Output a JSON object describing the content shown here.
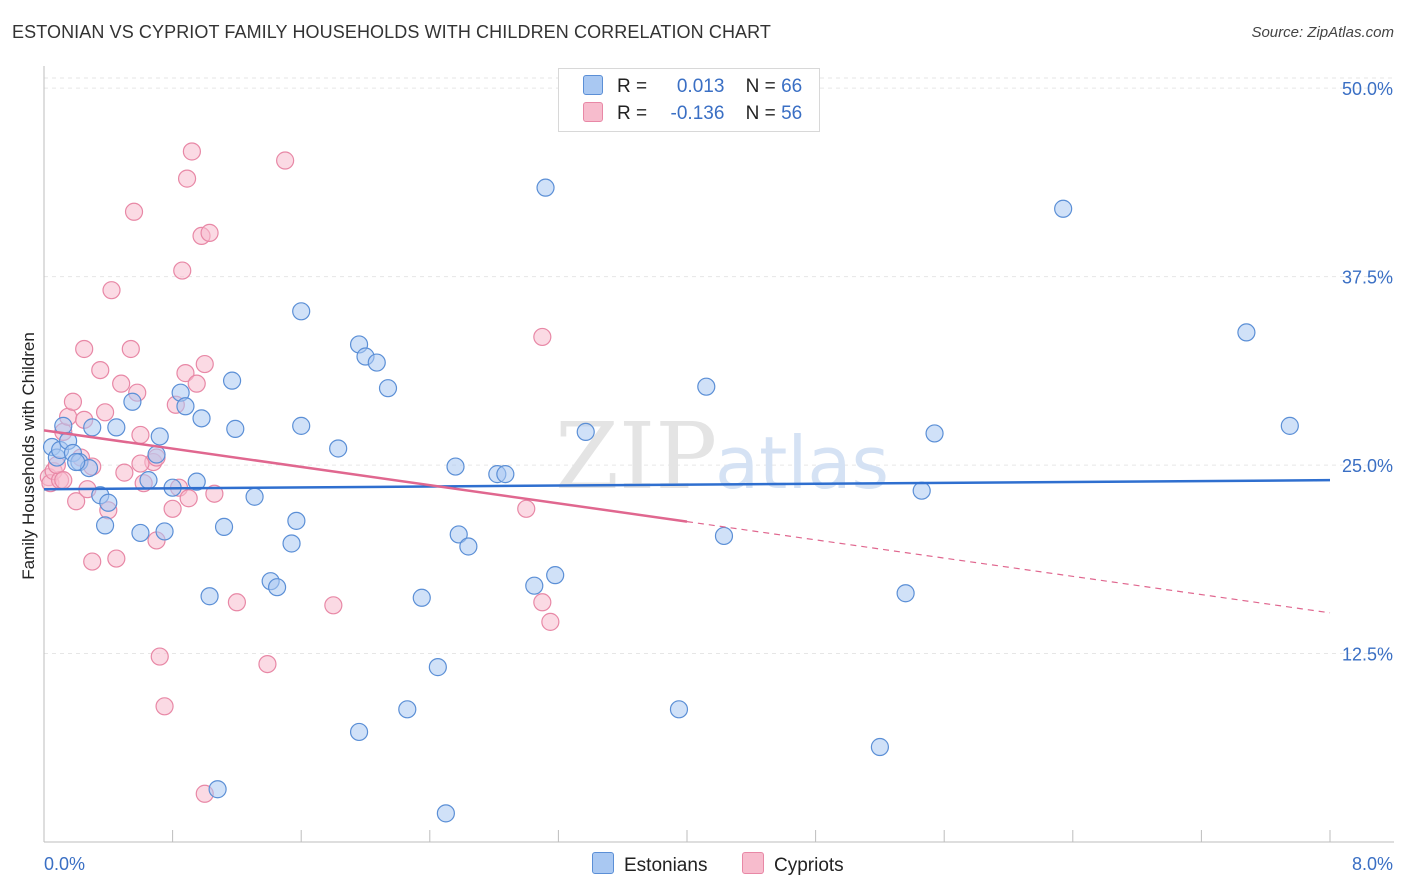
{
  "header": {
    "title": "ESTONIAN VS CYPRIOT FAMILY HOUSEHOLDS WITH CHILDREN CORRELATION CHART",
    "source": "Source: ZipAtlas.com"
  },
  "legend": {
    "rows": [
      {
        "r_label": "R =",
        "r_value": "0.013",
        "n_label": "N =",
        "n_value": "66",
        "color": "#a9c8f2"
      },
      {
        "r_label": "R =",
        "r_value": "-0.136",
        "n_label": "N =",
        "n_value": "56",
        "color": "#f7bccd"
      }
    ],
    "bottom": [
      {
        "label": "Estonians",
        "color": "#a9c8f2"
      },
      {
        "label": "Cypriots",
        "color": "#f7bccd"
      }
    ]
  },
  "watermark": {
    "zip": "ZIP",
    "atlas": "atlas"
  },
  "colors": {
    "estonian_fill": "#a9c8f2",
    "estonian_stroke": "#5b8fd6",
    "estonian_line": "#2f6fcf",
    "cypriot_fill": "#f7bccd",
    "cypriot_stroke": "#e888a6",
    "cypriot_line": "#e0678f",
    "axis_label": "#3a6fc4",
    "grid": "#e6e6e6"
  },
  "chart_data": {
    "type": "scatter",
    "title": "ESTONIAN VS CYPRIOT FAMILY HOUSEHOLDS WITH CHILDREN CORRELATION CHART",
    "xlabel": "",
    "ylabel": "Family Households with Children",
    "xlim": [
      0,
      8
    ],
    "ylim": [
      0,
      52
    ],
    "x_tick_labels": [
      "0.0%",
      "8.0%"
    ],
    "y_ticks": [
      12.5,
      25.0,
      37.5,
      50.0
    ],
    "y_tick_labels": [
      "12.5%",
      "25.0%",
      "37.5%",
      "50.0%"
    ],
    "grid": true,
    "legend_position": "top-center",
    "series": [
      {
        "name": "Estonians",
        "R": 0.013,
        "N": 66,
        "trend": {
          "x": [
            0,
            8
          ],
          "y": [
            23.4,
            24.0
          ],
          "dashed_from": null
        },
        "points": [
          [
            0.05,
            26.2
          ],
          [
            0.08,
            25.5
          ],
          [
            0.1,
            26.0
          ],
          [
            0.12,
            27.6
          ],
          [
            0.15,
            26.6
          ],
          [
            0.18,
            25.8
          ],
          [
            0.22,
            25.2
          ],
          [
            0.28,
            24.8
          ],
          [
            0.3,
            27.5
          ],
          [
            0.35,
            23.0
          ],
          [
            0.38,
            21.0
          ],
          [
            0.4,
            22.5
          ],
          [
            0.45,
            27.5
          ],
          [
            0.55,
            29.2
          ],
          [
            0.6,
            20.5
          ],
          [
            0.65,
            24.0
          ],
          [
            0.7,
            25.7
          ],
          [
            0.72,
            26.9
          ],
          [
            0.75,
            20.6
          ],
          [
            0.8,
            23.5
          ],
          [
            0.85,
            29.8
          ],
          [
            0.88,
            28.9
          ],
          [
            0.95,
            23.9
          ],
          [
            0.98,
            28.1
          ],
          [
            1.03,
            16.3
          ],
          [
            1.12,
            20.9
          ],
          [
            1.17,
            30.6
          ],
          [
            1.19,
            27.4
          ],
          [
            1.31,
            22.9
          ],
          [
            1.41,
            17.3
          ],
          [
            1.45,
            16.9
          ],
          [
            1.54,
            19.8
          ],
          [
            1.57,
            21.3
          ],
          [
            1.6,
            27.6
          ],
          [
            1.6,
            35.2
          ],
          [
            1.83,
            26.1
          ],
          [
            1.96,
            7.3
          ],
          [
            1.96,
            33.0
          ],
          [
            2.0,
            32.2
          ],
          [
            2.07,
            31.8
          ],
          [
            2.14,
            30.1
          ],
          [
            2.26,
            8.8
          ],
          [
            2.35,
            16.2
          ],
          [
            2.45,
            11.6
          ],
          [
            2.5,
            1.9
          ],
          [
            2.56,
            24.9
          ],
          [
            2.58,
            20.4
          ],
          [
            2.64,
            19.6
          ],
          [
            2.82,
            24.4
          ],
          [
            2.87,
            24.4
          ],
          [
            3.05,
            17.0
          ],
          [
            3.12,
            43.4
          ],
          [
            3.18,
            17.7
          ],
          [
            3.37,
            27.2
          ],
          [
            3.95,
            8.8
          ],
          [
            4.12,
            30.2
          ],
          [
            4.23,
            20.3
          ],
          [
            5.2,
            6.3
          ],
          [
            5.36,
            16.5
          ],
          [
            5.46,
            23.3
          ],
          [
            5.54,
            27.1
          ],
          [
            6.34,
            42.0
          ],
          [
            7.48,
            33.8
          ],
          [
            7.75,
            27.6
          ],
          [
            0.2,
            25.2
          ],
          [
            1.08,
            3.5
          ]
        ]
      },
      {
        "name": "Cypriots",
        "R": -0.136,
        "N": 56,
        "trend": {
          "x": [
            0,
            8
          ],
          "y": [
            27.3,
            15.2
          ],
          "dashed_from": 4.0
        },
        "points": [
          [
            0.03,
            24.2
          ],
          [
            0.04,
            23.8
          ],
          [
            0.06,
            24.6
          ],
          [
            0.1,
            24.0
          ],
          [
            0.12,
            27.2
          ],
          [
            0.15,
            28.2
          ],
          [
            0.18,
            29.2
          ],
          [
            0.2,
            22.6
          ],
          [
            0.23,
            25.5
          ],
          [
            0.25,
            32.7
          ],
          [
            0.27,
            23.4
          ],
          [
            0.3,
            24.9
          ],
          [
            0.35,
            31.3
          ],
          [
            0.38,
            28.5
          ],
          [
            0.4,
            22.0
          ],
          [
            0.42,
            36.6
          ],
          [
            0.45,
            18.8
          ],
          [
            0.48,
            30.4
          ],
          [
            0.5,
            24.5
          ],
          [
            0.54,
            32.7
          ],
          [
            0.56,
            41.8
          ],
          [
            0.58,
            29.8
          ],
          [
            0.6,
            27.0
          ],
          [
            0.62,
            23.8
          ],
          [
            0.68,
            25.2
          ],
          [
            0.7,
            20.0
          ],
          [
            0.7,
            25.5
          ],
          [
            0.72,
            12.3
          ],
          [
            0.75,
            9.0
          ],
          [
            0.8,
            22.1
          ],
          [
            0.82,
            29.0
          ],
          [
            0.84,
            23.5
          ],
          [
            0.86,
            37.9
          ],
          [
            0.88,
            31.1
          ],
          [
            0.89,
            44.0
          ],
          [
            0.9,
            22.8
          ],
          [
            0.92,
            45.8
          ],
          [
            0.95,
            30.4
          ],
          [
            0.98,
            40.2
          ],
          [
            1.0,
            31.7
          ],
          [
            1.0,
            3.2
          ],
          [
            1.03,
            40.4
          ],
          [
            1.06,
            23.1
          ],
          [
            1.2,
            15.9
          ],
          [
            1.39,
            11.8
          ],
          [
            1.5,
            45.2
          ],
          [
            1.8,
            15.7
          ],
          [
            3.0,
            22.1
          ],
          [
            3.1,
            33.5
          ],
          [
            3.1,
            15.9
          ],
          [
            3.15,
            14.6
          ],
          [
            0.08,
            25.0
          ],
          [
            0.12,
            24.0
          ],
          [
            0.3,
            18.6
          ],
          [
            0.6,
            25.1
          ],
          [
            0.25,
            28.0
          ]
        ]
      }
    ]
  }
}
